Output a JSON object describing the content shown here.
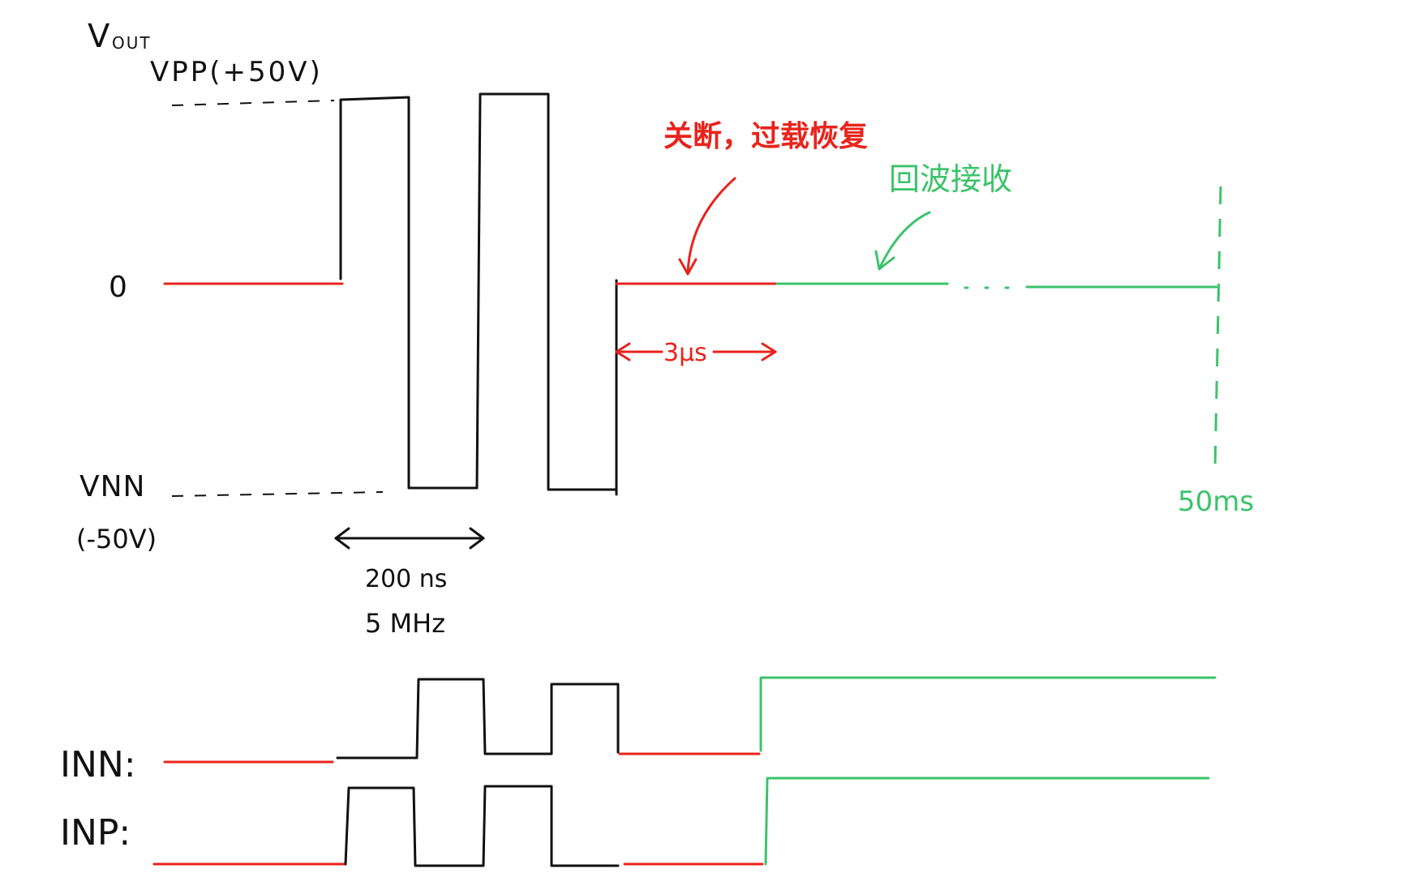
{
  "labels": {
    "vout_v": "V",
    "vout_sub": "OUT",
    "vpp": "VPP(+50V)",
    "zero": "0",
    "vnn": "VNN",
    "vnn_value": "(-50V)",
    "period": "200 ns",
    "frequency": "5 MHz",
    "recovery_time": "3μs",
    "shutdown_note": "关断，过载恢复",
    "echo_note": "回波接收",
    "end_time": "50ms",
    "inn": "INN:",
    "inp": "INP:"
  },
  "colors": {
    "ink": "#111111",
    "shutdown": "#e8241c",
    "receive": "#3cc36a"
  }
}
